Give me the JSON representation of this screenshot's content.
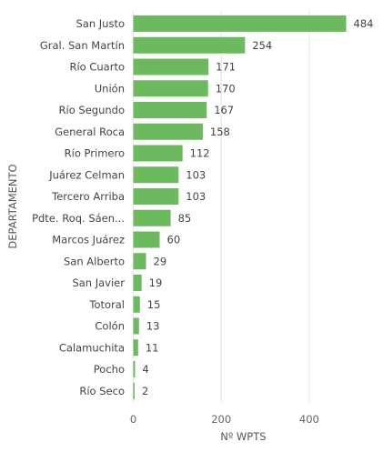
{
  "chart_data": {
    "type": "bar",
    "orientation": "horizontal",
    "categories": [
      "San Justo",
      "Gral. San Martín",
      "Río Cuarto",
      "Unión",
      "Río Segundo",
      "General Roca",
      "Río Primero",
      "Juárez Celman",
      "Tercero Arriba",
      "Pdte. Roq. Sáen...",
      "Marcos Juárez",
      "San Alberto",
      "San Javier",
      "Totoral",
      "Colón",
      "Calamuchita",
      "Pocho",
      "Río Seco"
    ],
    "values": [
      484,
      254,
      171,
      170,
      167,
      158,
      112,
      103,
      103,
      85,
      60,
      29,
      19,
      15,
      13,
      11,
      4,
      2
    ],
    "xlabel": "Nº WPTS",
    "ylabel": "DEPARTAMENTO",
    "xlim": [
      0,
      500
    ],
    "xticks": [
      0,
      200,
      400
    ],
    "grid": true,
    "bar_color": "#6db95f"
  }
}
